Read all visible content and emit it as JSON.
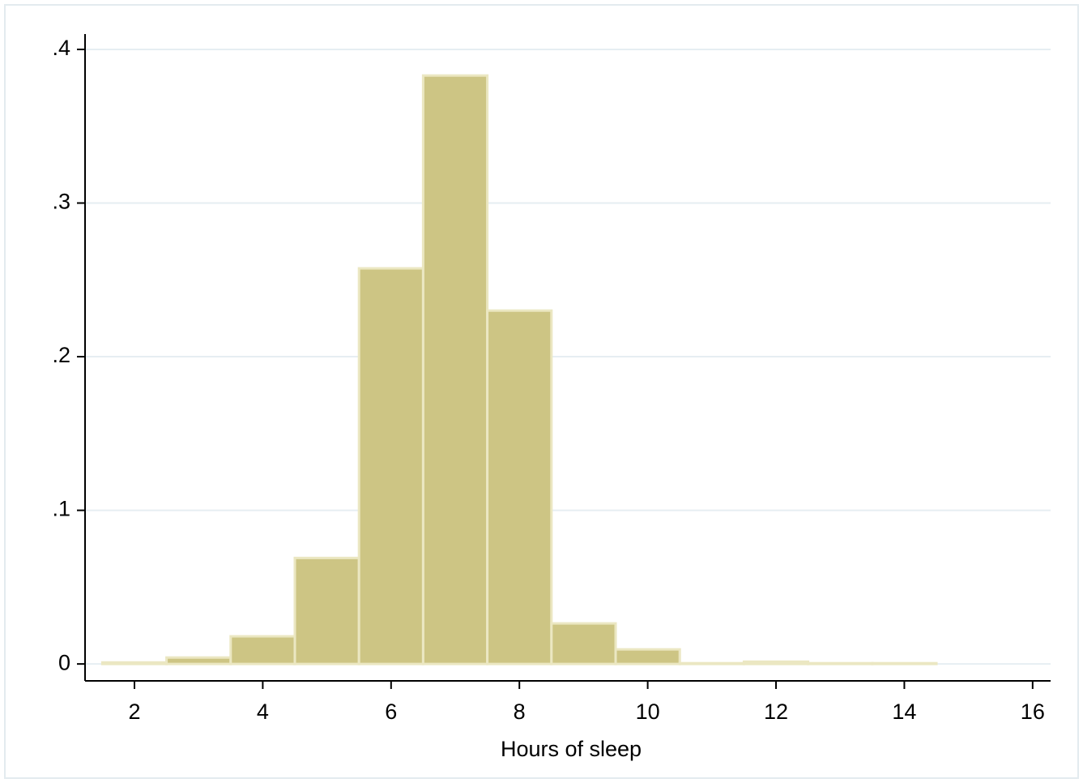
{
  "chart_data": {
    "type": "histogram",
    "x_label": "Hours of sleep",
    "bins": [
      1.5,
      2.5,
      3.5,
      4.5,
      5.5,
      6.5,
      7.5,
      8.5,
      9.5,
      10.5,
      11.5,
      12.5,
      13.5,
      14.5
    ],
    "values": [
      0.001,
      0.0042,
      0.018,
      0.069,
      0.2575,
      0.383,
      0.23,
      0.0264,
      0.0095,
      0.0005,
      0.0015,
      0.0005,
      0.0005
    ],
    "color": "#cdc584",
    "edge_color": "#ebe7c2",
    "xlim": [
      1.23,
      16.28
    ],
    "xticks": [
      2,
      4,
      6,
      8,
      10,
      12,
      14,
      16
    ],
    "ylim": [
      -0.011,
      0.41
    ],
    "yticks": [
      0,
      {
        "value": 0.1,
        "label": ".1"
      },
      {
        "value": 0.2,
        "label": ".2"
      },
      {
        "value": 0.3,
        "label": ".3"
      },
      {
        "value": 0.4,
        "label": ".4"
      }
    ],
    "grid": true
  }
}
